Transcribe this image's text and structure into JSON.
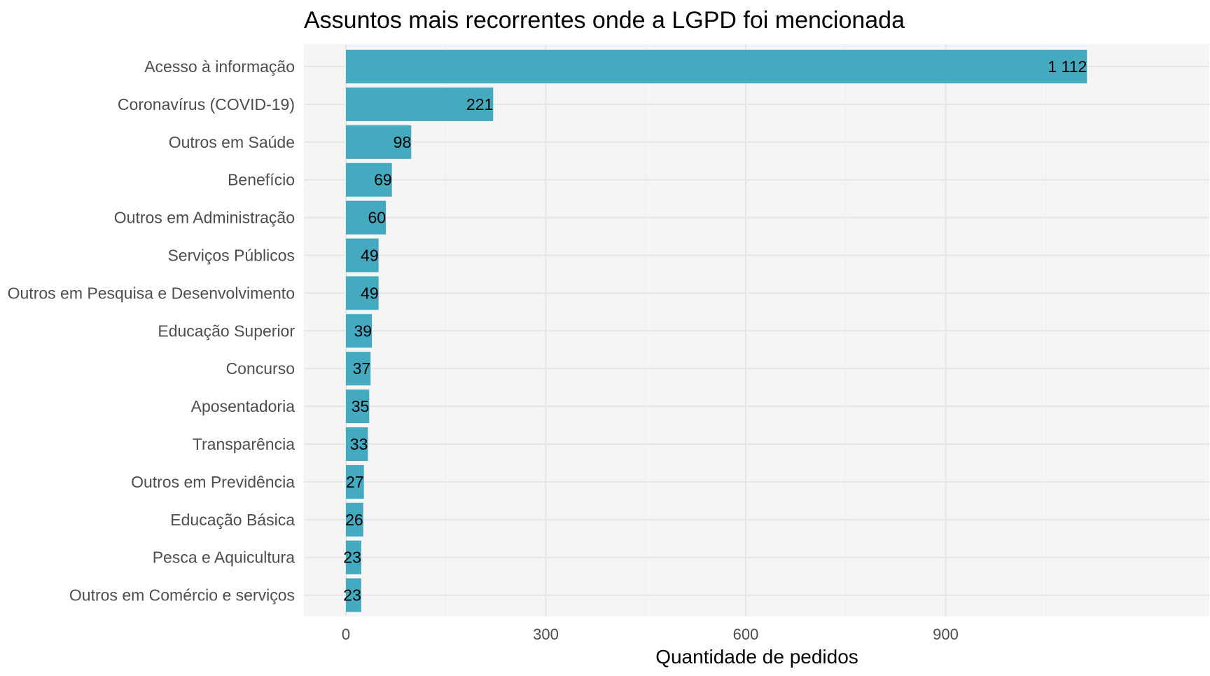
{
  "chart_data": {
    "type": "bar",
    "orientation": "horizontal",
    "title": "Assuntos mais recorrentes onde a LGPD foi mencionada",
    "xlabel": "Quantidade de pedidos",
    "ylabel": "",
    "xlim": [
      0,
      1155
    ],
    "xticks": [
      0,
      300,
      600,
      900
    ],
    "xtick_labels": [
      "0",
      "300",
      "600",
      "900"
    ],
    "grid": true,
    "legend": "none",
    "colors": {
      "bar": "#43aac0",
      "panel": "#f5f5f5",
      "grid_major": "#e6e6e6",
      "grid_minor": "#ededed"
    },
    "categories": [
      "Acesso à informação",
      "Coronavírus (COVID-19)",
      "Outros em Saúde",
      "Benefício",
      "Outros em Administração",
      "Serviços Públicos",
      "Outros em Pesquisa e Desenvolvimento",
      "Educação Superior",
      "Concurso",
      "Aposentadoria",
      "Transparência",
      "Outros em Previdência",
      "Educação Básica",
      "Pesca e Aquicultura",
      "Outros em Comércio e serviços"
    ],
    "values": [
      1112,
      221,
      98,
      69,
      60,
      49,
      49,
      39,
      37,
      35,
      33,
      27,
      26,
      23,
      23
    ],
    "value_labels": [
      "1 112",
      "221",
      "98",
      "69",
      "60",
      "49",
      "49",
      "39",
      "37",
      "35",
      "33",
      "27",
      "26",
      "23",
      "23"
    ]
  }
}
